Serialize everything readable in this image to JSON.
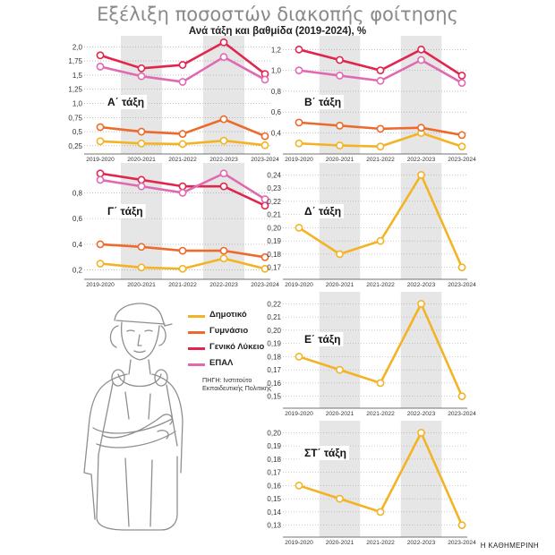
{
  "title": "Εξέλιξη ποσοστών διακοπής φοίτησης",
  "subtitle": "Ανά τάξη και βαθμίδα (2019-2024), %",
  "legend": [
    {
      "name": "Δημοτικό",
      "color": "#f4b324"
    },
    {
      "name": "Γυμνάσιο",
      "color": "#ec6a2c"
    },
    {
      "name": "Γενικό Λύκειο",
      "color": "#e0264f"
    },
    {
      "name": "ΕΠΑΛ",
      "color": "#e06ab2"
    }
  ],
  "source": "ΠΗΓΗ: Ινστιτούτο Εκπαιδευτικής Πολιτικής",
  "credit": "Η ΚΑΘΗΜΕΡΙΝΗ",
  "chart_data": [
    {
      "type": "line",
      "label": "Α΄ τάξη",
      "categories": [
        "2019-2020",
        "2020-2021",
        "2021-2022",
        "2022-2023",
        "2023-2024"
      ],
      "yticks": [
        "0,25",
        "0,5",
        "0,75",
        "1,0",
        "1,25",
        "1,5",
        "1,75",
        "2,0"
      ],
      "ylim": [
        0.2,
        2.1
      ],
      "series": [
        {
          "name": "Δημοτικό",
          "values": [
            0.33,
            0.29,
            0.28,
            0.34,
            0.26
          ]
        },
        {
          "name": "Γυμνάσιο",
          "values": [
            0.58,
            0.5,
            0.46,
            0.72,
            0.42
          ]
        },
        {
          "name": "Γενικό Λύκειο",
          "values": [
            1.85,
            1.62,
            1.68,
            2.08,
            1.52
          ]
        },
        {
          "name": "ΕΠΑΛ",
          "values": [
            1.65,
            1.48,
            1.38,
            1.82,
            1.42
          ]
        }
      ]
    },
    {
      "type": "line",
      "label": "Β΄ τάξη",
      "categories": [
        "2019-2020",
        "2020-2021",
        "2021-2022",
        "2022-2023",
        "2023-2024"
      ],
      "yticks": [
        "0,4",
        "0,6",
        "0,8",
        "1,0",
        "1,2"
      ],
      "ylim": [
        0.25,
        1.28
      ],
      "series": [
        {
          "name": "Δημοτικό",
          "values": [
            0.3,
            0.28,
            0.27,
            0.4,
            0.27
          ]
        },
        {
          "name": "Γυμνάσιο",
          "values": [
            0.5,
            0.47,
            0.44,
            0.45,
            0.38
          ]
        },
        {
          "name": "Γενικό Λύκειο",
          "values": [
            1.2,
            1.1,
            1.0,
            1.2,
            0.95
          ]
        },
        {
          "name": "ΕΠΑΛ",
          "values": [
            1.0,
            0.95,
            0.9,
            1.1,
            0.88
          ]
        }
      ]
    },
    {
      "type": "line",
      "label": "Γ΄ τάξη",
      "categories": [
        "2019-2020",
        "2020-2021",
        "2021-2022",
        "2022-2023",
        "2023-2024"
      ],
      "yticks": [
        "0,2",
        "0,4",
        "0,6",
        "0,8"
      ],
      "ylim": [
        0.17,
        0.99
      ],
      "series": [
        {
          "name": "Δημοτικό",
          "values": [
            0.25,
            0.22,
            0.21,
            0.29,
            0.21
          ]
        },
        {
          "name": "Γυμνάσιο",
          "values": [
            0.4,
            0.38,
            0.35,
            0.35,
            0.3
          ]
        },
        {
          "name": "Γενικό Λύκειο",
          "values": [
            0.95,
            0.9,
            0.85,
            0.85,
            0.7
          ]
        },
        {
          "name": "ΕΠΑΛ",
          "values": [
            0.9,
            0.85,
            0.8,
            0.95,
            0.75
          ]
        }
      ]
    },
    {
      "type": "line",
      "label": "Δ΄ τάξη",
      "categories": [
        "2019-2020",
        "2020-2021",
        "2021-2022",
        "2022-2023",
        "2023-2024"
      ],
      "yticks": [
        "0,17",
        "0,18",
        "0,19",
        "0,20",
        "0,21",
        "0,22",
        "0,23",
        "0,24"
      ],
      "ylim": [
        0.165,
        0.245
      ],
      "series": [
        {
          "name": "Δημοτικό",
          "values": [
            0.2,
            0.18,
            0.19,
            0.24,
            0.17
          ]
        }
      ]
    },
    {
      "type": "line",
      "label": "Ε΄ τάξη",
      "categories": [
        "2019-2020",
        "2020-2021",
        "2021-2022",
        "2022-2023",
        "2023-2024"
      ],
      "yticks": [
        "0,15",
        "0,16",
        "0,17",
        "0,18",
        "0,19",
        "0,20",
        "0,21",
        "0,22"
      ],
      "ylim": [
        0.145,
        0.225
      ],
      "series": [
        {
          "name": "Δημοτικό",
          "values": [
            0.18,
            0.17,
            0.16,
            0.22,
            0.15
          ]
        }
      ]
    },
    {
      "type": "line",
      "label": "ΣΤ΄ τάξη",
      "categories": [
        "2019-2020",
        "2020-2021",
        "2021-2022",
        "2022-2023",
        "2023-2024"
      ],
      "yticks": [
        "0,13",
        "0,14",
        "0,15",
        "0,16",
        "0,17",
        "0,18",
        "0,19",
        "0,20"
      ],
      "ylim": [
        0.125,
        0.205
      ],
      "series": [
        {
          "name": "Δημοτικό",
          "values": [
            0.16,
            0.15,
            0.14,
            0.2,
            0.13
          ]
        }
      ]
    }
  ]
}
